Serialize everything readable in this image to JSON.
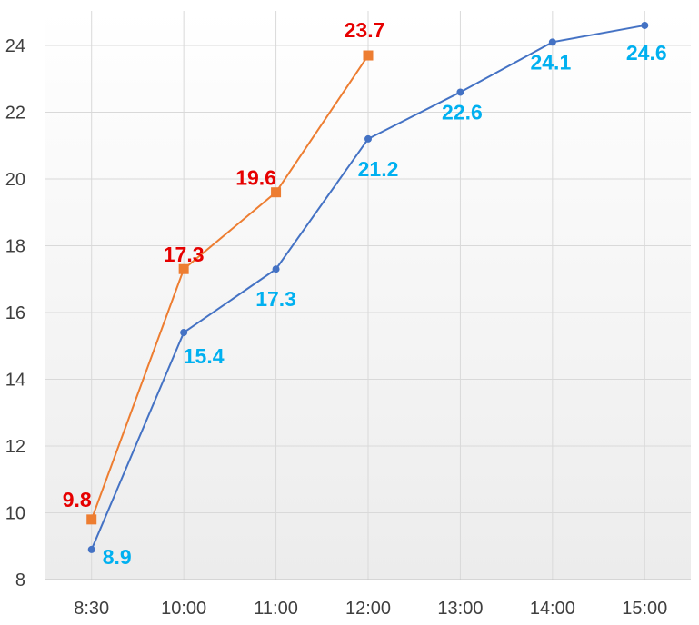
{
  "chart_data": {
    "type": "line",
    "categories": [
      "8:30",
      "10:00",
      "11:00",
      "12:00",
      "13:00",
      "14:00",
      "15:00"
    ],
    "ylim": [
      8,
      25
    ],
    "yticks": [
      8,
      10,
      12,
      14,
      16,
      18,
      20,
      22,
      24
    ],
    "grid": true,
    "legend": "none",
    "series": [
      {
        "color": "#ED7D31",
        "label_color": "#E60000",
        "marker": "square",
        "values": [
          9.8,
          17.3,
          19.6,
          23.7,
          null,
          null,
          null
        ],
        "labels": [
          "9.8",
          "17.3",
          "19.6",
          "23.7",
          "",
          "",
          ""
        ]
      },
      {
        "color": "#4472C4",
        "label_color": "#00B0F0",
        "marker": "circle",
        "values": [
          8.9,
          15.4,
          17.3,
          21.2,
          22.6,
          24.1,
          24.6
        ],
        "labels": [
          "8.9",
          "15.4",
          "17.3",
          "21.2",
          "22.6",
          "24.1",
          "24.6"
        ]
      }
    ]
  }
}
